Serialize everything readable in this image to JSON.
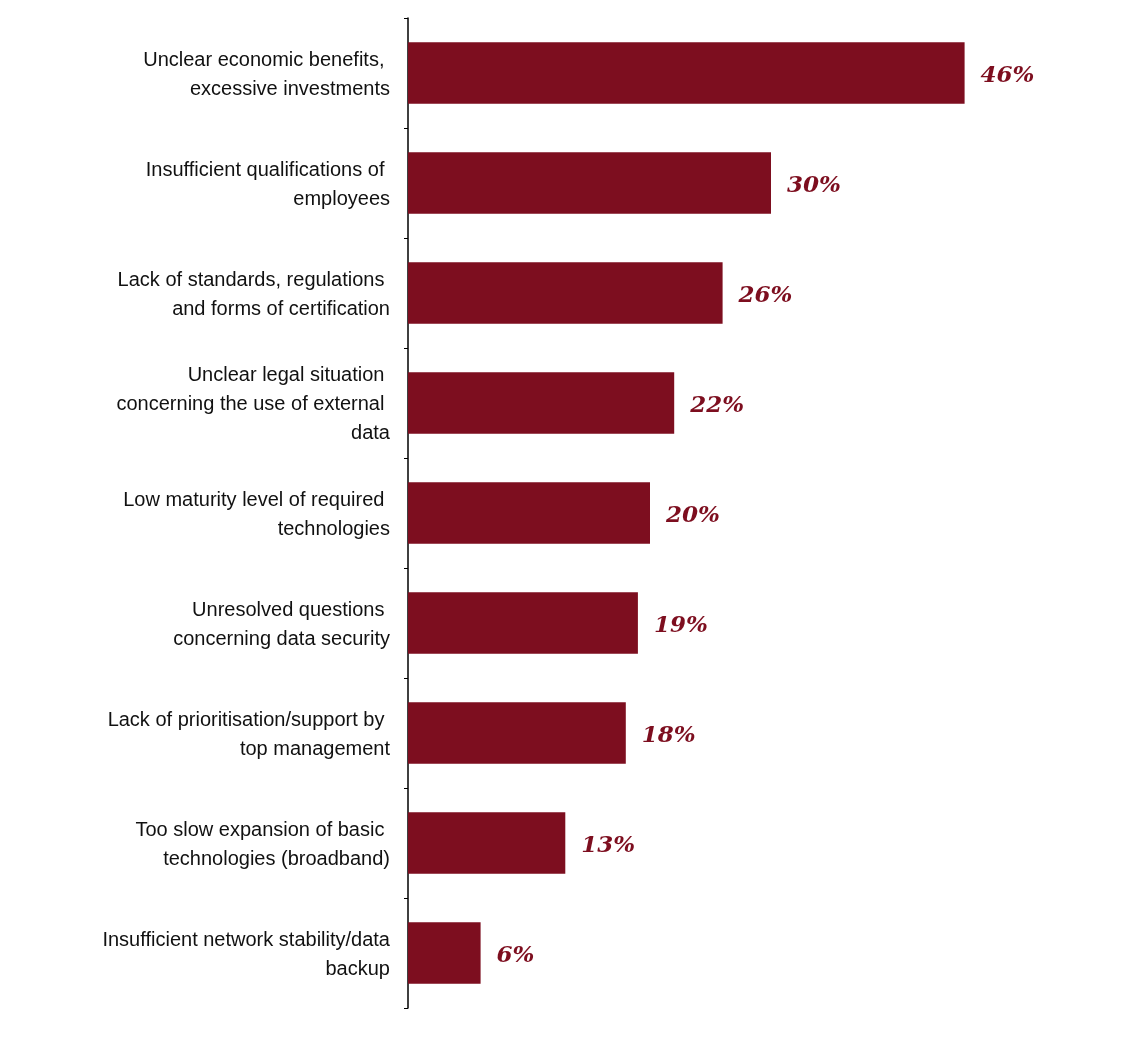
{
  "chart_data": {
    "type": "bar",
    "orientation": "horizontal",
    "tick_labels": "y",
    "color": "#7d0e1f",
    "categories": [
      "Unclear economic benefits, excessive investments",
      "Insufficient qualifications of employees",
      "Lack of standards, regulations and forms of certification",
      "Unclear legal situation concerning the use of external data",
      "Low maturity level of required technologies",
      "Unresolved questions concerning data security",
      "Lack of prioritisation/support by top management",
      "Too slow expansion of basic technologies (broadband)",
      "Insufficient network stability/data backup"
    ],
    "values": [
      46,
      30,
      26,
      22,
      20,
      19,
      18,
      13,
      6
    ],
    "value_labels": [
      "46%",
      "30%",
      "26%",
      "22%",
      "20%",
      "19%",
      "18%",
      "13%",
      "6%"
    ]
  }
}
